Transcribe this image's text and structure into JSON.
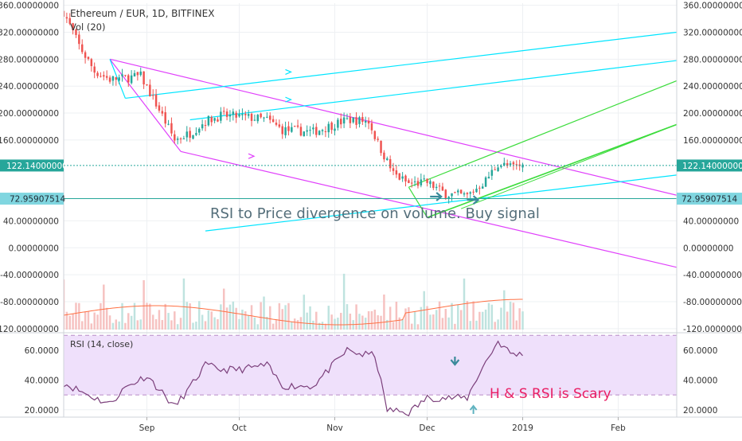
{
  "header": {
    "symbol": "Ethereum / EUR, 1D, BITFINEX",
    "volume_label": "Vol (20)",
    "rsi_label": "RSI (14, close)"
  },
  "price_axis": {
    "ticks": [
      "360.00000000",
      "320.00000000",
      "280.00000000",
      "240.00000000",
      "200.00000000",
      "160.00000000",
      "40.00000000",
      "0.00000000",
      "-40.00000000",
      "-80.00000000",
      "-120.00000000"
    ],
    "current_price": "122.14000000",
    "support_price": "72.95907514"
  },
  "rsi_axis": {
    "ticks": [
      "60.0000",
      "40.0000",
      "20.0000"
    ]
  },
  "time_axis": {
    "ticks": [
      "Sep",
      "Oct",
      "Nov",
      "Dec",
      "2019",
      "Feb"
    ]
  },
  "annotations": {
    "divergence": "RSI to Price divergence on volume. Buy signal",
    "scary": "H & S RSI is Scary"
  },
  "colors": {
    "up": "#26a69a",
    "down": "#ef5350",
    "channel": "#e040fb",
    "trend": "#00e5ff",
    "pitchfork": "#3cdc3c",
    "rsi_line": "#7b3f7b",
    "rsi_band": "#efe0fb",
    "price_label": "#26a69a",
    "support_label": "#80d6e0",
    "annotation_text": "#546e7a",
    "scary_text": "#e91e63"
  },
  "chart_data": [
    {
      "type": "candlestick",
      "series_name": "Ethereum / EUR, 1D, BITFINEX",
      "x_range": [
        "2018-08-05",
        "2019-02-20"
      ],
      "ylim": [
        -125,
        362
      ],
      "last_close": 122.14,
      "key_points": [
        {
          "date": "2018-08-05",
          "close": 350
        },
        {
          "date": "2018-08-10",
          "close": 300
        },
        {
          "date": "2018-08-15",
          "close": 262
        },
        {
          "date": "2018-08-20",
          "close": 250
        },
        {
          "date": "2018-08-25",
          "close": 252
        },
        {
          "date": "2018-08-30",
          "close": 255
        },
        {
          "date": "2018-09-05",
          "close": 205
        },
        {
          "date": "2018-09-10",
          "close": 160
        },
        {
          "date": "2018-09-15",
          "close": 170
        },
        {
          "date": "2018-09-20",
          "close": 188
        },
        {
          "date": "2018-09-25",
          "close": 196
        },
        {
          "date": "2018-10-01",
          "close": 195
        },
        {
          "date": "2018-10-10",
          "close": 190
        },
        {
          "date": "2018-10-15",
          "close": 175
        },
        {
          "date": "2018-10-25",
          "close": 172
        },
        {
          "date": "2018-11-05",
          "close": 190
        },
        {
          "date": "2018-11-12",
          "close": 188
        },
        {
          "date": "2018-11-15",
          "close": 155
        },
        {
          "date": "2018-11-20",
          "close": 110
        },
        {
          "date": "2018-11-25",
          "close": 95
        },
        {
          "date": "2018-12-01",
          "close": 97
        },
        {
          "date": "2018-12-07",
          "close": 80
        },
        {
          "date": "2018-12-14",
          "close": 77
        },
        {
          "date": "2018-12-20",
          "close": 100
        },
        {
          "date": "2018-12-24",
          "close": 125
        },
        {
          "date": "2018-12-28",
          "close": 120
        },
        {
          "date": "2019-01-01",
          "close": 122
        }
      ]
    },
    {
      "type": "bar",
      "series_name": "Vol (20)",
      "note": "Volume histogram with 20-period moving average (orange line)"
    },
    {
      "type": "line",
      "series_name": "RSI (14, close)",
      "ylim": [
        10,
        72
      ],
      "bands": [
        30,
        70
      ],
      "points": [
        {
          "date": "2018-08-05",
          "value": 38
        },
        {
          "date": "2018-08-15",
          "value": 28
        },
        {
          "date": "2018-08-20",
          "value": 24
        },
        {
          "date": "2018-08-25",
          "value": 35
        },
        {
          "date": "2018-09-01",
          "value": 43
        },
        {
          "date": "2018-09-10",
          "value": 22
        },
        {
          "date": "2018-09-15",
          "value": 35
        },
        {
          "date": "2018-09-20",
          "value": 50
        },
        {
          "date": "2018-09-25",
          "value": 47
        },
        {
          "date": "2018-10-01",
          "value": 47
        },
        {
          "date": "2018-10-10",
          "value": 50
        },
        {
          "date": "2018-10-15",
          "value": 36
        },
        {
          "date": "2018-10-25",
          "value": 36
        },
        {
          "date": "2018-11-05",
          "value": 60
        },
        {
          "date": "2018-11-10",
          "value": 57
        },
        {
          "date": "2018-11-14",
          "value": 57
        },
        {
          "date": "2018-11-18",
          "value": 20
        },
        {
          "date": "2018-11-25",
          "value": 18
        },
        {
          "date": "2018-12-01",
          "value": 28
        },
        {
          "date": "2018-12-07",
          "value": 28
        },
        {
          "date": "2018-12-14",
          "value": 28
        },
        {
          "date": "2018-12-18",
          "value": 45
        },
        {
          "date": "2018-12-24",
          "value": 66
        },
        {
          "date": "2018-12-28",
          "value": 58
        },
        {
          "date": "2019-01-01",
          "value": 57
        }
      ]
    }
  ]
}
